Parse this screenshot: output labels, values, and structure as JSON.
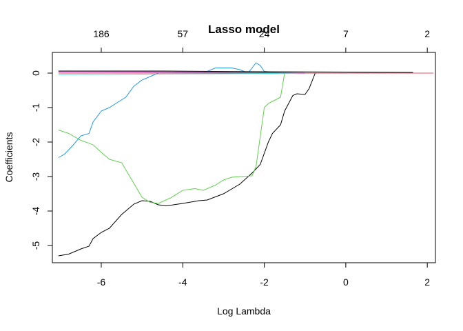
{
  "chart_data": {
    "type": "line",
    "title": "Lasso model",
    "xlabel": "Log Lambda",
    "ylabel": "Coefficients",
    "xlim": [
      -7.2,
      2.2
    ],
    "ylim": [
      -5.5,
      0.6
    ],
    "x_ticks": [
      -6,
      -4,
      -2,
      0,
      2
    ],
    "y_ticks": [
      0,
      -1,
      -2,
      -3,
      -4,
      -5
    ],
    "top_axis": {
      "label": "",
      "ticks": [
        {
          "x": -6,
          "label": "186"
        },
        {
          "x": -4,
          "label": "57"
        },
        {
          "x": -2,
          "label": "24"
        },
        {
          "x": 0,
          "label": "7"
        },
        {
          "x": 2,
          "label": "2"
        }
      ]
    },
    "grid": false,
    "legend": "none",
    "series": [
      {
        "color": "#000000",
        "x": [
          -7.05,
          -6.8,
          -6.5,
          -6.3,
          -6.2,
          -6.0,
          -5.8,
          -5.5,
          -5.2,
          -5.0,
          -4.8,
          -4.6,
          -4.4,
          -4.0,
          -3.6,
          -3.4,
          -3.0,
          -2.6,
          -2.3,
          -2.1,
          -1.9,
          -1.8,
          -1.6,
          -1.5,
          -1.3,
          -1.2,
          -1.0,
          -0.9,
          -0.75
        ],
        "y": [
          -5.3,
          -5.25,
          -5.1,
          -5.02,
          -4.8,
          -4.62,
          -4.5,
          -4.1,
          -3.8,
          -3.7,
          -3.72,
          -3.82,
          -3.85,
          -3.78,
          -3.7,
          -3.68,
          -3.5,
          -3.22,
          -2.9,
          -2.65,
          -2.0,
          -1.75,
          -1.5,
          -1.1,
          -0.65,
          -0.6,
          -0.62,
          -0.45,
          0.0
        ]
      },
      {
        "color": "#61D04F",
        "x": [
          -7.05,
          -6.8,
          -6.5,
          -6.2,
          -6.0,
          -5.8,
          -5.5,
          -5.2,
          -5.0,
          -4.8,
          -4.6,
          -4.3,
          -4.0,
          -3.7,
          -3.5,
          -3.2,
          -3.0,
          -2.8,
          -2.6,
          -2.3,
          -2.2,
          -2.0,
          -1.9,
          -1.8,
          -1.6,
          -1.5
        ],
        "y": [
          -1.65,
          -1.75,
          -1.95,
          -2.08,
          -2.3,
          -2.5,
          -2.6,
          -3.2,
          -3.6,
          -3.75,
          -3.78,
          -3.62,
          -3.4,
          -3.35,
          -3.4,
          -3.25,
          -3.1,
          -3.02,
          -3.0,
          -2.98,
          -2.7,
          -1.0,
          -0.88,
          -0.82,
          -0.7,
          0.0
        ]
      },
      {
        "color": "#2297E6",
        "x": [
          -7.05,
          -6.9,
          -6.7,
          -6.5,
          -6.3,
          -6.2,
          -6.0,
          -5.8,
          -5.6,
          -5.4,
          -5.2,
          -5.0,
          -4.8,
          -4.6,
          -4.3,
          -4.0,
          -3.5,
          -3.2,
          -2.8,
          -2.6,
          -2.4,
          -2.2,
          -2.1,
          -2.0,
          -1.8,
          -1.6
        ],
        "y": [
          -2.45,
          -2.35,
          -2.1,
          -1.82,
          -1.75,
          -1.42,
          -1.1,
          -1.0,
          -0.85,
          -0.7,
          -0.38,
          -0.2,
          -0.1,
          0.0,
          0.0,
          0.0,
          0.0,
          0.15,
          0.15,
          0.1,
          0.0,
          0.3,
          0.22,
          0.05,
          0.03,
          0.0
        ]
      },
      {
        "color": "#DF536B",
        "x": [
          -7.05,
          -5.0,
          -3.0,
          -2.0,
          0.0,
          2.15
        ],
        "y": [
          0.0,
          0.0,
          0.0,
          0.0,
          0.0,
          0.0
        ]
      },
      {
        "color": "#28E2E5",
        "x": [
          -7.05,
          -5.0,
          -3.0,
          -1.8,
          -1.2
        ],
        "y": [
          -0.04,
          -0.03,
          -0.02,
          -0.01,
          0.0
        ]
      },
      {
        "color": "#CD0BBC",
        "x": [
          -7.05,
          -5.0,
          -3.0,
          -1.8,
          -1.0
        ],
        "y": [
          0.04,
          0.03,
          0.02,
          0.01,
          0.0
        ]
      },
      {
        "color": "#9E9E9E",
        "x": [
          -7.05,
          -4.5,
          -2.0,
          0.5,
          1.6
        ],
        "y": [
          0.05,
          0.04,
          0.03,
          0.02,
          0.02
        ]
      },
      {
        "color": "#000000",
        "x": [
          -7.05,
          -4.5,
          -2.0,
          0.0,
          1.65
        ],
        "y": [
          0.06,
          0.06,
          0.04,
          0.03,
          0.02
        ]
      }
    ]
  }
}
